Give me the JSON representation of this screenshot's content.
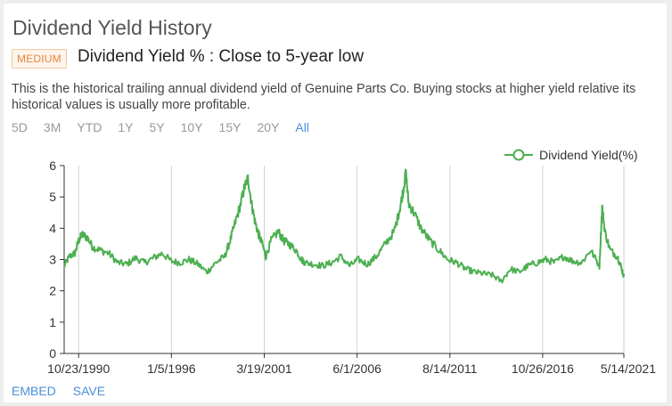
{
  "header": {
    "title": "Dividend Yield History",
    "badge": "MEDIUM",
    "subtitle": "Dividend Yield % : Close to 5-year low",
    "description": "This is the historical trailing annual dividend yield of Genuine Parts Co. Buying stocks at higher yield relative its historical values is usually more profitable."
  },
  "ranges": {
    "items": [
      "5D",
      "3M",
      "YTD",
      "1Y",
      "5Y",
      "10Y",
      "15Y",
      "20Y",
      "All"
    ],
    "active": "All"
  },
  "footer": {
    "embed": "EMBED",
    "save": "SAVE"
  },
  "colors": {
    "line": "#4caf50",
    "accent": "#4a90d9",
    "badge": "#e8883a"
  },
  "chart_data": {
    "type": "line",
    "title": "",
    "legend": "Dividend Yield(%)",
    "legend_position": "top-right",
    "xlabel": "",
    "ylabel": "",
    "ylim": [
      0,
      6
    ],
    "yticks": [
      "0",
      "1",
      "2",
      "3",
      "4",
      "5",
      "6"
    ],
    "x_tick_labels": [
      "10/23/1990",
      "1/5/1996",
      "3/19/2001",
      "6/1/2006",
      "8/14/2011",
      "10/26/2016",
      "5/14/2021"
    ],
    "x_range_years": [
      1990.0,
      2021.37
    ],
    "series": [
      {
        "name": "Dividend Yield(%)",
        "x": [
          1990.0,
          1990.3,
          1990.6,
          1990.81,
          1991.0,
          1991.3,
          1991.6,
          1992.0,
          1992.5,
          1993.0,
          1993.5,
          1994.0,
          1994.5,
          1995.0,
          1995.5,
          1996.0,
          1996.5,
          1997.0,
          1997.5,
          1998.0,
          1998.5,
          1999.0,
          1999.3,
          1999.6,
          1999.9,
          2000.1,
          2000.3,
          2000.5,
          2000.7,
          2000.9,
          2001.1,
          2001.3,
          2001.6,
          2002.0,
          2002.3,
          2002.6,
          2003.0,
          2003.3,
          2003.5,
          2004.0,
          2004.5,
          2005.0,
          2005.5,
          2006.0,
          2006.5,
          2007.0,
          2007.5,
          2008.0,
          2008.5,
          2008.8,
          2009.0,
          2009.15,
          2009.3,
          2009.6,
          2010.0,
          2010.5,
          2011.0,
          2011.5,
          2012.0,
          2012.5,
          2013.0,
          2013.5,
          2014.0,
          2014.5,
          2015.0,
          2015.5,
          2016.0,
          2016.5,
          2017.0,
          2017.5,
          2018.0,
          2018.5,
          2019.0,
          2019.5,
          2020.0,
          2020.15,
          2020.3,
          2020.6,
          2021.0,
          2021.2,
          2021.37
        ],
        "values": [
          2.8,
          3.1,
          3.2,
          3.6,
          3.8,
          3.7,
          3.4,
          3.3,
          3.2,
          2.9,
          2.85,
          3.05,
          2.9,
          3.05,
          3.2,
          2.95,
          2.9,
          3.0,
          2.85,
          2.6,
          2.9,
          3.1,
          3.6,
          4.2,
          4.8,
          5.3,
          5.6,
          4.8,
          4.2,
          3.8,
          3.5,
          3.1,
          3.6,
          3.9,
          3.6,
          3.5,
          3.3,
          3.0,
          2.9,
          2.85,
          2.8,
          2.9,
          3.1,
          2.8,
          3.0,
          2.85,
          3.1,
          3.5,
          3.9,
          4.6,
          5.2,
          5.8,
          4.8,
          4.5,
          4.0,
          3.6,
          3.3,
          3.0,
          2.9,
          2.7,
          2.6,
          2.55,
          2.5,
          2.3,
          2.7,
          2.6,
          2.8,
          2.9,
          3.0,
          2.9,
          3.1,
          2.95,
          2.9,
          3.3,
          2.8,
          4.7,
          3.9,
          3.3,
          3.1,
          2.8,
          2.45
        ]
      }
    ]
  }
}
